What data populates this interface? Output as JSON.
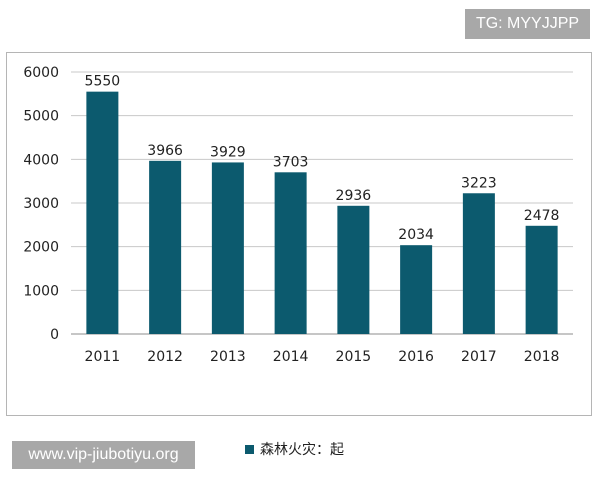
{
  "watermarks": {
    "top": "TG: MYYJJPP",
    "bottom": "www.vip-jiubotiyu.org"
  },
  "chart_data": {
    "type": "bar",
    "categories": [
      "2011",
      "2012",
      "2013",
      "2014",
      "2015",
      "2016",
      "2017",
      "2018"
    ],
    "series": [
      {
        "name": "森林火灾：起",
        "values": [
          5550,
          3966,
          3929,
          3703,
          2936,
          2034,
          3223,
          2478
        ],
        "color": "#0c5a6e"
      }
    ],
    "title": "",
    "xlabel": "",
    "ylabel": "",
    "ylim": [
      0,
      6000
    ],
    "yticks": [
      0,
      1000,
      2000,
      3000,
      4000,
      5000,
      6000
    ],
    "grid": true,
    "data_labels": true,
    "legend": "bottom"
  }
}
